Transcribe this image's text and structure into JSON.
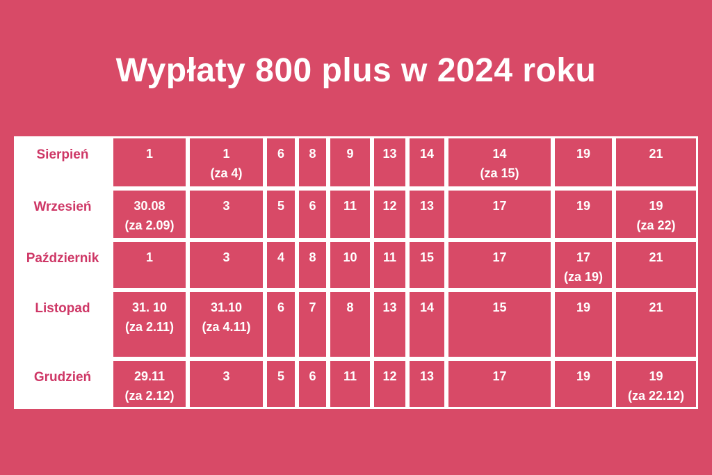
{
  "title": "Wypłaty 800 plus w 2024 roku",
  "colors": {
    "background": "#d84a67",
    "cell_background": "#d84a67",
    "grid_border": "#ffffff",
    "month_cell_background": "#ffffff",
    "month_text": "#ce3766",
    "cell_text": "#ffffff",
    "title_text": "#ffffff"
  },
  "chart_data": {
    "type": "table",
    "title": "Wypłaty 800 plus w 2024 roku",
    "legend_position": "none",
    "grid": "white borders on pink cells, white row-header cells",
    "rows": [
      {
        "month": "Sierpień",
        "dates": [
          [
            "1"
          ],
          [
            "1",
            "(za 4)"
          ],
          [
            "6"
          ],
          [
            "8"
          ],
          [
            "9"
          ],
          [
            "13"
          ],
          [
            "14"
          ],
          [
            "14",
            "(za 15)"
          ],
          [
            "19"
          ],
          [
            "21"
          ]
        ]
      },
      {
        "month": "Wrzesień",
        "dates": [
          [
            "30.08",
            "(za 2.09)"
          ],
          [
            "3"
          ],
          [
            "5"
          ],
          [
            "6"
          ],
          [
            "11"
          ],
          [
            "12"
          ],
          [
            "13"
          ],
          [
            "17"
          ],
          [
            "19"
          ],
          [
            "19",
            "(za 22)"
          ]
        ]
      },
      {
        "month": "Październik",
        "dates": [
          [
            "1"
          ],
          [
            "3"
          ],
          [
            "4"
          ],
          [
            "8"
          ],
          [
            "10"
          ],
          [
            "11"
          ],
          [
            "15"
          ],
          [
            "17"
          ],
          [
            "17",
            "(za 19)"
          ],
          [
            "21"
          ]
        ]
      },
      {
        "month": "Listopad",
        "dates": [
          [
            "31. 10",
            "(za 2.11)"
          ],
          [
            "31.10",
            "(za 4.11)"
          ],
          [
            "6"
          ],
          [
            "7"
          ],
          [
            "8"
          ],
          [
            "13"
          ],
          [
            "14"
          ],
          [
            "15"
          ],
          [
            "19"
          ],
          [
            "21"
          ]
        ]
      },
      {
        "month": "Grudzień",
        "dates": [
          [
            "29.11",
            "(za 2.12)"
          ],
          [
            "3"
          ],
          [
            "5"
          ],
          [
            "6"
          ],
          [
            "11"
          ],
          [
            "12"
          ],
          [
            "13"
          ],
          [
            "17"
          ],
          [
            "19"
          ],
          [
            "19",
            "(za 22.12)"
          ]
        ]
      }
    ]
  }
}
